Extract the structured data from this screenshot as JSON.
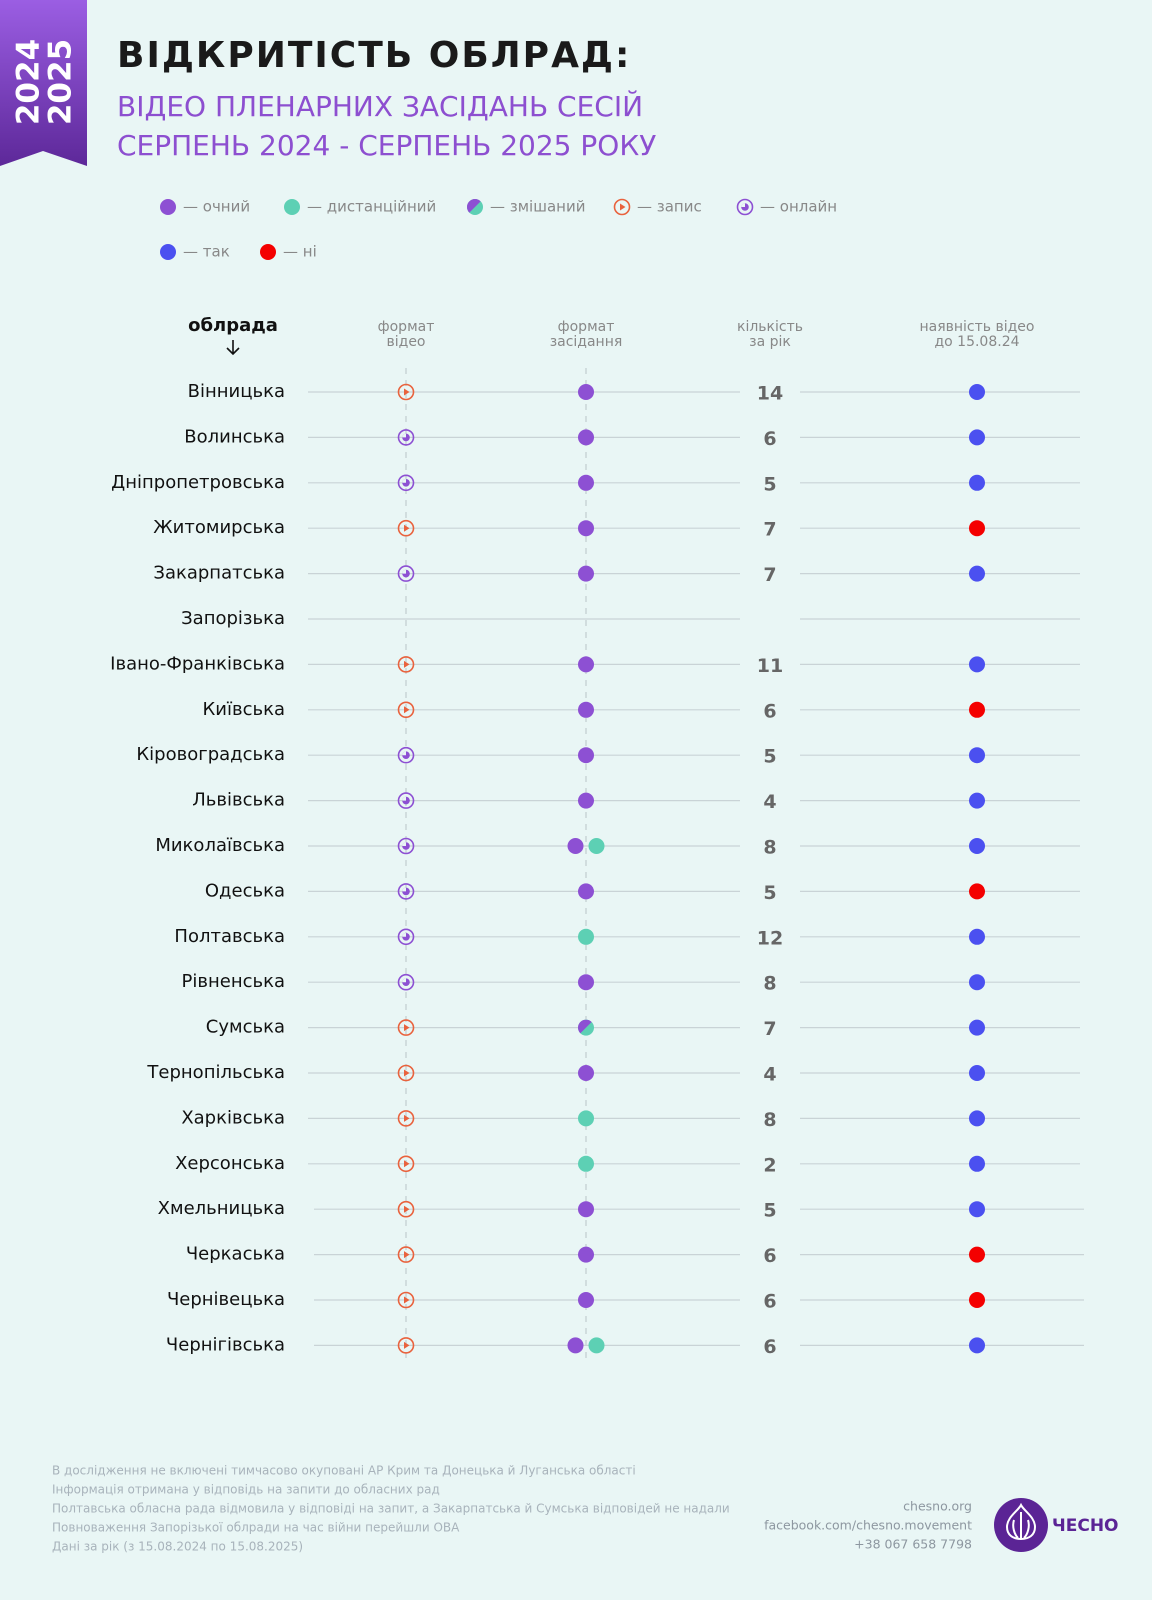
{
  "banner": {
    "years": [
      "2024",
      "2025"
    ]
  },
  "header": {
    "title": "ВІДКРИТІСТЬ ОБЛРАД:",
    "subtitle": [
      "ВІДЕО ПЛЕНАРНИХ ЗАСІДАНЬ СЕСІЙ",
      "СЕРПЕНЬ 2024 - СЕРПЕНЬ 2025 РОКУ"
    ]
  },
  "legend": [
    [
      {
        "label": "— очний",
        "kind": "dot",
        "color": "#8d50d3"
      },
      {
        "label": "— дистанційний",
        "kind": "dot",
        "color": "#5dd0b4"
      },
      {
        "label": "— змішаний",
        "kind": "mixed",
        "color": "#8d50d3"
      },
      {
        "label": "— запис",
        "kind": "record",
        "color": "#e9623d"
      },
      {
        "label": "— онлайн",
        "kind": "online",
        "color": "#8d50d3"
      }
    ],
    [
      {
        "label": "— так",
        "kind": "dot",
        "color": "#4b50f0"
      },
      {
        "label": "— ні",
        "kind": "dot",
        "color": "#f40000"
      }
    ]
  ],
  "table": {
    "columns": [
      "облрада",
      [
        "формат",
        "відео"
      ],
      [
        "формат",
        "засідання"
      ],
      [
        "кількість",
        "за рік"
      ],
      [
        "наявність відео",
        "до 15.08.24"
      ]
    ],
    "rows": [
      {
        "name": "Вінницька",
        "video": "— запис",
        "session": [
          "— очний"
        ],
        "count": "14",
        "available": "— так"
      },
      {
        "name": "Волинська",
        "video": "— онлайн",
        "session": [
          "— очний"
        ],
        "count": "6",
        "available": "— так"
      },
      {
        "name": "Дніпропетровська",
        "video": "— онлайн",
        "session": [
          "— очний"
        ],
        "count": "5",
        "available": "— так"
      },
      {
        "name": "Житомирська",
        "video": "— запис",
        "session": [
          "— очний"
        ],
        "count": "7",
        "available": "— ні"
      },
      {
        "name": "Закарпатська",
        "video": "— онлайн",
        "session": [
          "— очний"
        ],
        "count": "7",
        "available": "— так"
      },
      {
        "name": "Запорізька",
        "video": null,
        "session": [],
        "count": null,
        "available": null
      },
      {
        "name": "Івано-Франківська",
        "video": "— запис",
        "session": [
          "— очний"
        ],
        "count": "11",
        "available": "— так"
      },
      {
        "name": "Київська",
        "video": "— запис",
        "session": [
          "— очний"
        ],
        "count": "6",
        "available": "— ні"
      },
      {
        "name": "Кіровоградська",
        "video": "— онлайн",
        "session": [
          "— очний"
        ],
        "count": "5",
        "available": "— так"
      },
      {
        "name": "Львівська",
        "video": "— онлайн",
        "session": [
          "— очний"
        ],
        "count": "4",
        "available": "— так"
      },
      {
        "name": "Миколаївська",
        "video": "— онлайн",
        "session": [
          "— очний",
          "— дистанційний"
        ],
        "count": "8",
        "available": "— так"
      },
      {
        "name": "Одеська",
        "video": "— онлайн",
        "session": [
          "— очний"
        ],
        "count": "5",
        "available": "— ні"
      },
      {
        "name": "Полтавська",
        "video": "— онлайн",
        "session": [
          "— дистанційний"
        ],
        "count": "12",
        "available": "— так"
      },
      {
        "name": "Рівненська",
        "video": "— онлайн",
        "session": [
          "— очний"
        ],
        "count": "8",
        "available": "— так"
      },
      {
        "name": "Сумська",
        "video": "— запис",
        "session": [
          "— змішаний"
        ],
        "count": "7",
        "available": "— так"
      },
      {
        "name": "Тернопільська",
        "video": "— запис",
        "session": [
          "— очний"
        ],
        "count": "4",
        "available": "— так"
      },
      {
        "name": "Харківська",
        "video": "— запис",
        "session": [
          "— дистанційний"
        ],
        "count": "8",
        "available": "— так"
      },
      {
        "name": "Херсонська",
        "video": "— запис",
        "session": [
          "— дистанційний"
        ],
        "count": "2",
        "available": "— так"
      },
      {
        "name": "Хмельницька",
        "video": "— запис",
        "session": [
          "— очний"
        ],
        "count": "5",
        "available": "— так"
      },
      {
        "name": "Черкаська",
        "video": "— запис",
        "session": [
          "— очний"
        ],
        "count": "6",
        "available": "— ні"
      },
      {
        "name": "Чернівецька",
        "video": "— запис",
        "session": [
          "— очний"
        ],
        "count": "6",
        "available": "— ні"
      },
      {
        "name": "Чернігівська",
        "video": "— запис",
        "session": [
          "— очний",
          "— дистанційний"
        ],
        "count": "6",
        "available": "— так"
      }
    ]
  },
  "footer": {
    "notes": [
      "В дослідження не включені тимчасово окуповані АР Крим та Донецька й Луганська області",
      "Інформація отримана у відповідь на запити до обласних рад",
      "Полтавська обласна рада відмовила у відповіді на запит, а Закарпатська й Сумська відповідей не надали",
      "Повноваження Запорізької облради на час війни перейшли ОВА",
      "Дані за рік (з 15.08.2024 по 15.08.2025)"
    ],
    "contacts": [
      "chesno.org",
      "facebook.com/chesno.movement",
      "+38 067 658 7798"
    ],
    "logo": "ЧЕСНО"
  }
}
